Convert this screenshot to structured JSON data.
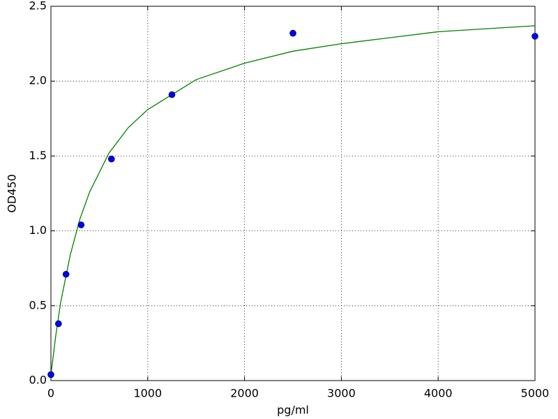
{
  "chart_data": {
    "type": "scatter",
    "xlabel": "pg/ml",
    "ylabel": "OD450",
    "xlim": [
      0,
      5000
    ],
    "ylim": [
      0,
      2.5
    ],
    "xticks": [
      0,
      1000,
      2000,
      3000,
      4000,
      5000
    ],
    "yticks": [
      {
        "value": 0,
        "label": "0.0"
      },
      0.5,
      {
        "value": 1,
        "label": "1.0"
      },
      1.5,
      {
        "value": 2,
        "label": "2.0"
      },
      2.5
    ],
    "grid": true,
    "series": [
      {
        "style": "line",
        "color": "#008000",
        "x": [
          0,
          50,
          100,
          200,
          300,
          400,
          600,
          800,
          1000,
          1500,
          2000,
          2500,
          3000,
          3500,
          4000,
          4500,
          5000
        ],
        "values": [
          0.04,
          0.3,
          0.52,
          0.84,
          1.08,
          1.26,
          1.52,
          1.69,
          1.81,
          2.01,
          2.12,
          2.2,
          2.25,
          2.29,
          2.33,
          2.35,
          2.37
        ]
      },
      {
        "style": "markers",
        "color": "#0000ff",
        "x": [
          0,
          78,
          156,
          312,
          625,
          1250,
          2500,
          5000
        ],
        "values": [
          0.04,
          0.38,
          0.71,
          1.04,
          1.48,
          1.91,
          2.32,
          2.3
        ]
      }
    ]
  }
}
